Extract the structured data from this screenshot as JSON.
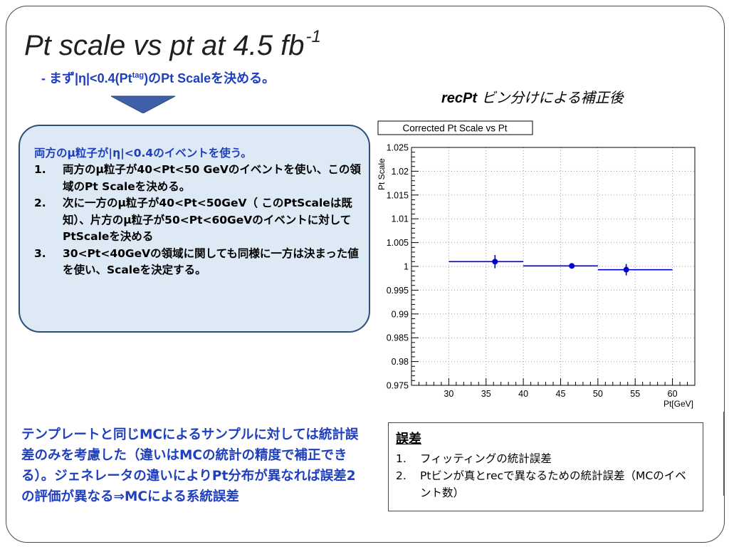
{
  "slide": {
    "title_main": "Pt scale vs pt at 4.5 fb",
    "title_sup": "-1",
    "subtitle_pre": "- まず|η|<0.4(Pt",
    "subtitle_sup": "tag",
    "subtitle_post": ")のPt Scaleを決める。",
    "recpt_bold": "recPt",
    "recpt_rest": "ビン分けによる補正後"
  },
  "steps": {
    "heading": "両方のμ粒子が|η|<0.4のイベントを使う。",
    "items": [
      {
        "num": "1.",
        "text": "両方のμ粒子が40<Pt<50 GeVのイベントを使い、この領域のPt Scaleを決める。"
      },
      {
        "num": "2.",
        "text": "次に一方のμ粒子が40<Pt<50GeV（ このPtScaleは既知）、片方のμ粒子が50<Pt<60GeVのイベントに対してPtScaleを決める"
      },
      {
        "num": "3.",
        "text": "30<Pt<40GeVの領域に関しても同様に一方は決まった値を使い、Scaleを決定する。"
      }
    ]
  },
  "bottom_text": "テンプレートと同じMCによるサンプルに対しては統計誤差のみを考慮した（違いはMCの統計の精度で補正できる）。ジェネレータの違いによりPt分布が異なれば誤差2の評価が異なる⇒MCによる系統誤差",
  "errors": {
    "title": "誤差",
    "items": [
      {
        "num": "1.",
        "text": "フィッティングの統計誤差"
      },
      {
        "num": "2.",
        "text": "Ptビンが真とrecで異なるための統計誤差（MCのイベント数）"
      }
    ]
  },
  "colors": {
    "accent_blue": "#1f3fbf",
    "box_fill": "#dde9f5",
    "marker_blue": "#0000cc"
  },
  "chart_data": {
    "type": "scatter",
    "title": "Corrected Pt Scale vs Pt",
    "xlabel": "Pt[GeV]",
    "ylabel": "Pt Scale",
    "xlim": [
      25,
      63
    ],
    "ylim": [
      0.975,
      1.025
    ],
    "xticks": [
      30,
      35,
      40,
      45,
      50,
      55,
      60
    ],
    "yticks": [
      0.975,
      0.98,
      0.985,
      0.99,
      0.995,
      1,
      1.005,
      1.01,
      1.015,
      1.02,
      1.025
    ],
    "ytick_labels": [
      "0.975",
      "0.98",
      "0.985",
      "0.99",
      "0.995",
      "1",
      "1.005",
      "1.01",
      "1.015",
      "1.02",
      "1.025"
    ],
    "grid": true,
    "points": [
      {
        "x": 36.2,
        "y": 1.001,
        "yerr": 0.0014,
        "xmin": 30,
        "xmax": 40
      },
      {
        "x": 46.5,
        "y": 1.0001,
        "yerr": 0.0003,
        "xmin": 40,
        "xmax": 50
      },
      {
        "x": 53.8,
        "y": 0.9993,
        "yerr": 0.0012,
        "xmin": 50,
        "xmax": 60
      }
    ]
  }
}
